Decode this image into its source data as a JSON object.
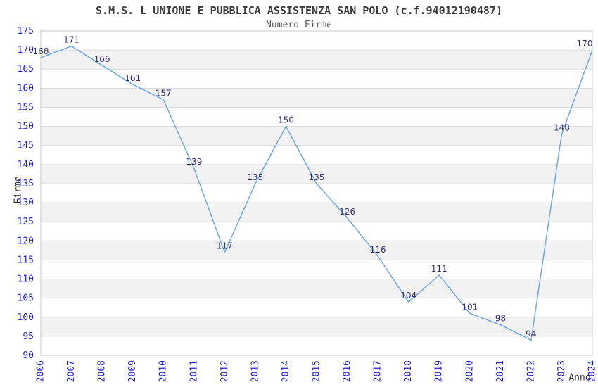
{
  "chart_data": {
    "type": "line",
    "title": "S.M.S. L UNIONE E PUBBLICA ASSISTENZA SAN POLO (c.f.94012190487)",
    "subtitle": "Numero Firme",
    "xlabel": "Anno",
    "ylabel": "Firme",
    "categories": [
      "2006",
      "2007",
      "2008",
      "2009",
      "2010",
      "2011",
      "2012",
      "2013",
      "2014",
      "2015",
      "2016",
      "2017",
      "2018",
      "2019",
      "2020",
      "2021",
      "2022",
      "2023",
      "2024"
    ],
    "values": [
      168,
      171,
      166,
      161,
      157,
      139,
      117,
      135,
      150,
      135,
      126,
      116,
      104,
      111,
      101,
      98,
      94,
      148,
      170
    ],
    "ylim": [
      90,
      175
    ],
    "ytick_step": 5,
    "grid": true,
    "legend": "none",
    "band_fill_alternating": true,
    "x_tick_rotation": -90,
    "colors": {
      "line": "#6FA7E1",
      "tick_label": "#2222CC",
      "data_label": "#2F2F74",
      "band": "#F2F2F2",
      "grid": "#DCDCDC",
      "border": "#C9C9C9",
      "title": "#3C3C3C",
      "subtitle": "#5A5A5A",
      "axis_title": "#333333"
    }
  }
}
